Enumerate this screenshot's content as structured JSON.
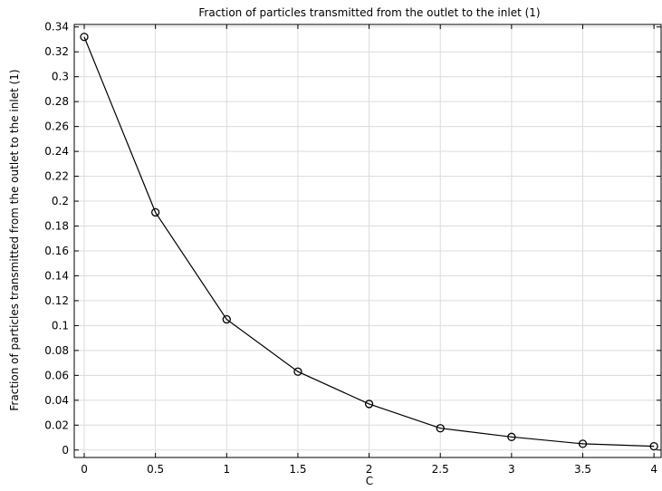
{
  "chart_data": {
    "type": "line",
    "title": "Fraction of particles transmitted from the outlet to the inlet (1)",
    "xlabel": "C",
    "ylabel": "Fraction of particles transmitted from the outlet to the inlet (1)",
    "xlim": [
      -0.07,
      4.05
    ],
    "ylim": [
      -0.006,
      0.342
    ],
    "x_ticks": [
      0,
      0.5,
      1,
      1.5,
      2,
      2.5,
      3,
      3.5,
      4
    ],
    "x_tick_labels": [
      "0",
      "0.5",
      "1",
      "1.5",
      "2",
      "2.5",
      "3",
      "3.5",
      "4"
    ],
    "y_ticks": [
      0,
      0.02,
      0.04,
      0.06,
      0.08,
      0.1,
      0.12,
      0.14,
      0.16,
      0.18,
      0.2,
      0.22,
      0.24,
      0.26,
      0.28,
      0.3,
      0.32,
      0.34
    ],
    "y_tick_labels": [
      "0",
      "0.02",
      "0.04",
      "0.06",
      "0.08",
      "0.1",
      "0.12",
      "0.14",
      "0.16",
      "0.18",
      "0.2",
      "0.22",
      "0.24",
      "0.26",
      "0.28",
      "0.3",
      "0.32",
      "0.34"
    ],
    "grid": true,
    "marker": "circle",
    "line_color": "#000000",
    "x": [
      0,
      0.5,
      1,
      1.5,
      2,
      2.5,
      3,
      3.5,
      4
    ],
    "series": [
      {
        "values": [
          0.332,
          0.191,
          0.105,
          0.063,
          0.037,
          0.0175,
          0.0105,
          0.005,
          0.003
        ]
      }
    ]
  }
}
